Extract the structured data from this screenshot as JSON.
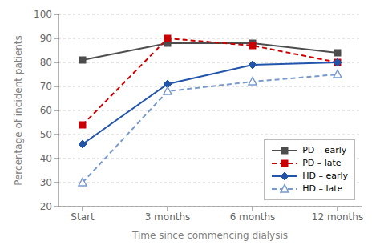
{
  "chart_data": {
    "type": "line",
    "categories": [
      "Start",
      "3 months",
      "6 months",
      "12 months"
    ],
    "series": [
      {
        "name": "PD – early",
        "color": "#4d4d4d",
        "values": [
          81,
          88,
          88,
          84
        ],
        "marker": "square",
        "line_style": "solid"
      },
      {
        "name": "PD – late",
        "color": "#cc0000",
        "values": [
          54,
          90,
          87,
          80
        ],
        "marker": "square",
        "line_style": "dashed"
      },
      {
        "name": "HD – early",
        "color": "#2255aa",
        "values": [
          46,
          71,
          79,
          80
        ],
        "marker": "diamond",
        "line_style": "solid"
      },
      {
        "name": "HD – late",
        "color": "#7799cc",
        "values": [
          30,
          68,
          72,
          75
        ],
        "marker": "triangle",
        "line_style": "dashed"
      }
    ],
    "xlabel": "Time since commencing dialysis",
    "ylabel": "Percentage of incident patients",
    "ylim": [
      20,
      100
    ],
    "yticks": [
      20,
      30,
      40,
      50,
      60,
      70,
      80,
      90,
      100
    ],
    "grid": true,
    "legend": "lower right"
  }
}
